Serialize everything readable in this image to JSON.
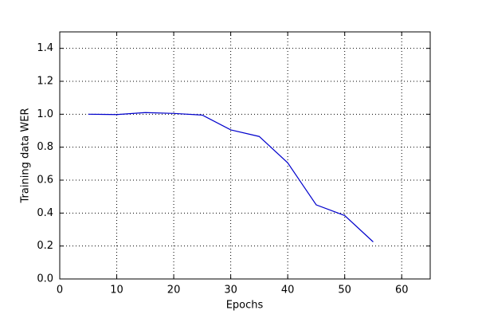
{
  "chart_data": {
    "type": "line",
    "x_label": "Epochs",
    "y_label": "Training data WER",
    "x": [
      5,
      10,
      15,
      20,
      25,
      30,
      35,
      40,
      45,
      50,
      55
    ],
    "series": [
      {
        "color": "#0000cc",
        "values": [
          1.0,
          0.998,
          1.01,
          1.005,
          0.995,
          0.905,
          0.865,
          0.705,
          0.45,
          0.385,
          0.225
        ]
      }
    ],
    "xlim": [
      0,
      65
    ],
    "xticks": [
      0,
      10,
      20,
      30,
      40,
      50,
      60
    ],
    "ylim": [
      0,
      1.5
    ],
    "yticks": [
      {
        "value": 0,
        "label": "0.0"
      },
      0.2,
      0.4,
      0.6,
      0.8,
      {
        "value": 1,
        "label": "1.0"
      },
      1.2,
      1.4
    ],
    "grid": true
  }
}
